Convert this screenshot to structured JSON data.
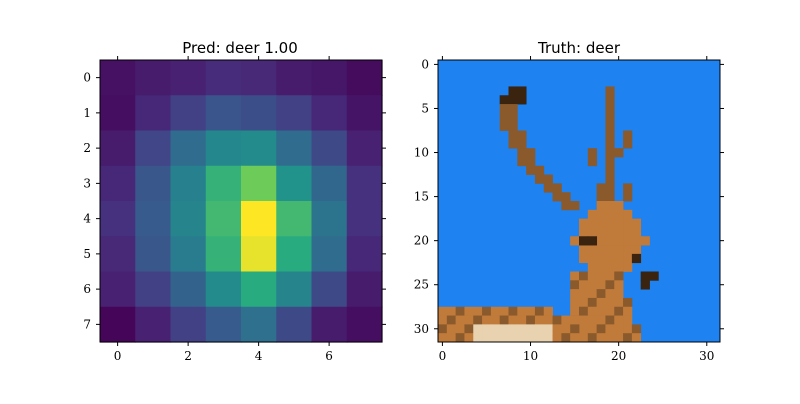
{
  "chart_data": [
    {
      "type": "heatmap",
      "title": "Pred: deer 1.00",
      "rows": 8,
      "cols": 8,
      "xticks": [
        0,
        2,
        4,
        6
      ],
      "yticks": [
        0,
        1,
        2,
        3,
        4,
        5,
        6,
        7
      ],
      "colormap": "viridis",
      "values": [
        [
          0.06,
          0.1,
          0.12,
          0.16,
          0.15,
          0.1,
          0.08,
          0.04
        ],
        [
          0.05,
          0.14,
          0.24,
          0.33,
          0.3,
          0.24,
          0.14,
          0.07
        ],
        [
          0.1,
          0.26,
          0.44,
          0.58,
          0.6,
          0.44,
          0.28,
          0.12
        ],
        [
          0.14,
          0.34,
          0.54,
          0.78,
          0.86,
          0.64,
          0.42,
          0.18
        ],
        [
          0.18,
          0.36,
          0.56,
          0.8,
          1.0,
          0.8,
          0.48,
          0.18
        ],
        [
          0.15,
          0.34,
          0.52,
          0.78,
          0.98,
          0.76,
          0.44,
          0.14
        ],
        [
          0.12,
          0.24,
          0.4,
          0.6,
          0.76,
          0.56,
          0.28,
          0.1
        ],
        [
          0.02,
          0.12,
          0.24,
          0.36,
          0.46,
          0.28,
          0.1,
          0.05
        ]
      ]
    },
    {
      "type": "image",
      "title": "Truth: deer",
      "width": 32,
      "height": 32,
      "xticks": [
        0,
        10,
        20,
        30
      ],
      "yticks": [
        0,
        5,
        10,
        15,
        20,
        25,
        30
      ],
      "background_color": "#1e82f0",
      "antler_color": "#8a5a2c",
      "fur_color": "#c07a3a",
      "dark_color": "#3a2410",
      "light_color": "#e8d2b0"
    }
  ]
}
